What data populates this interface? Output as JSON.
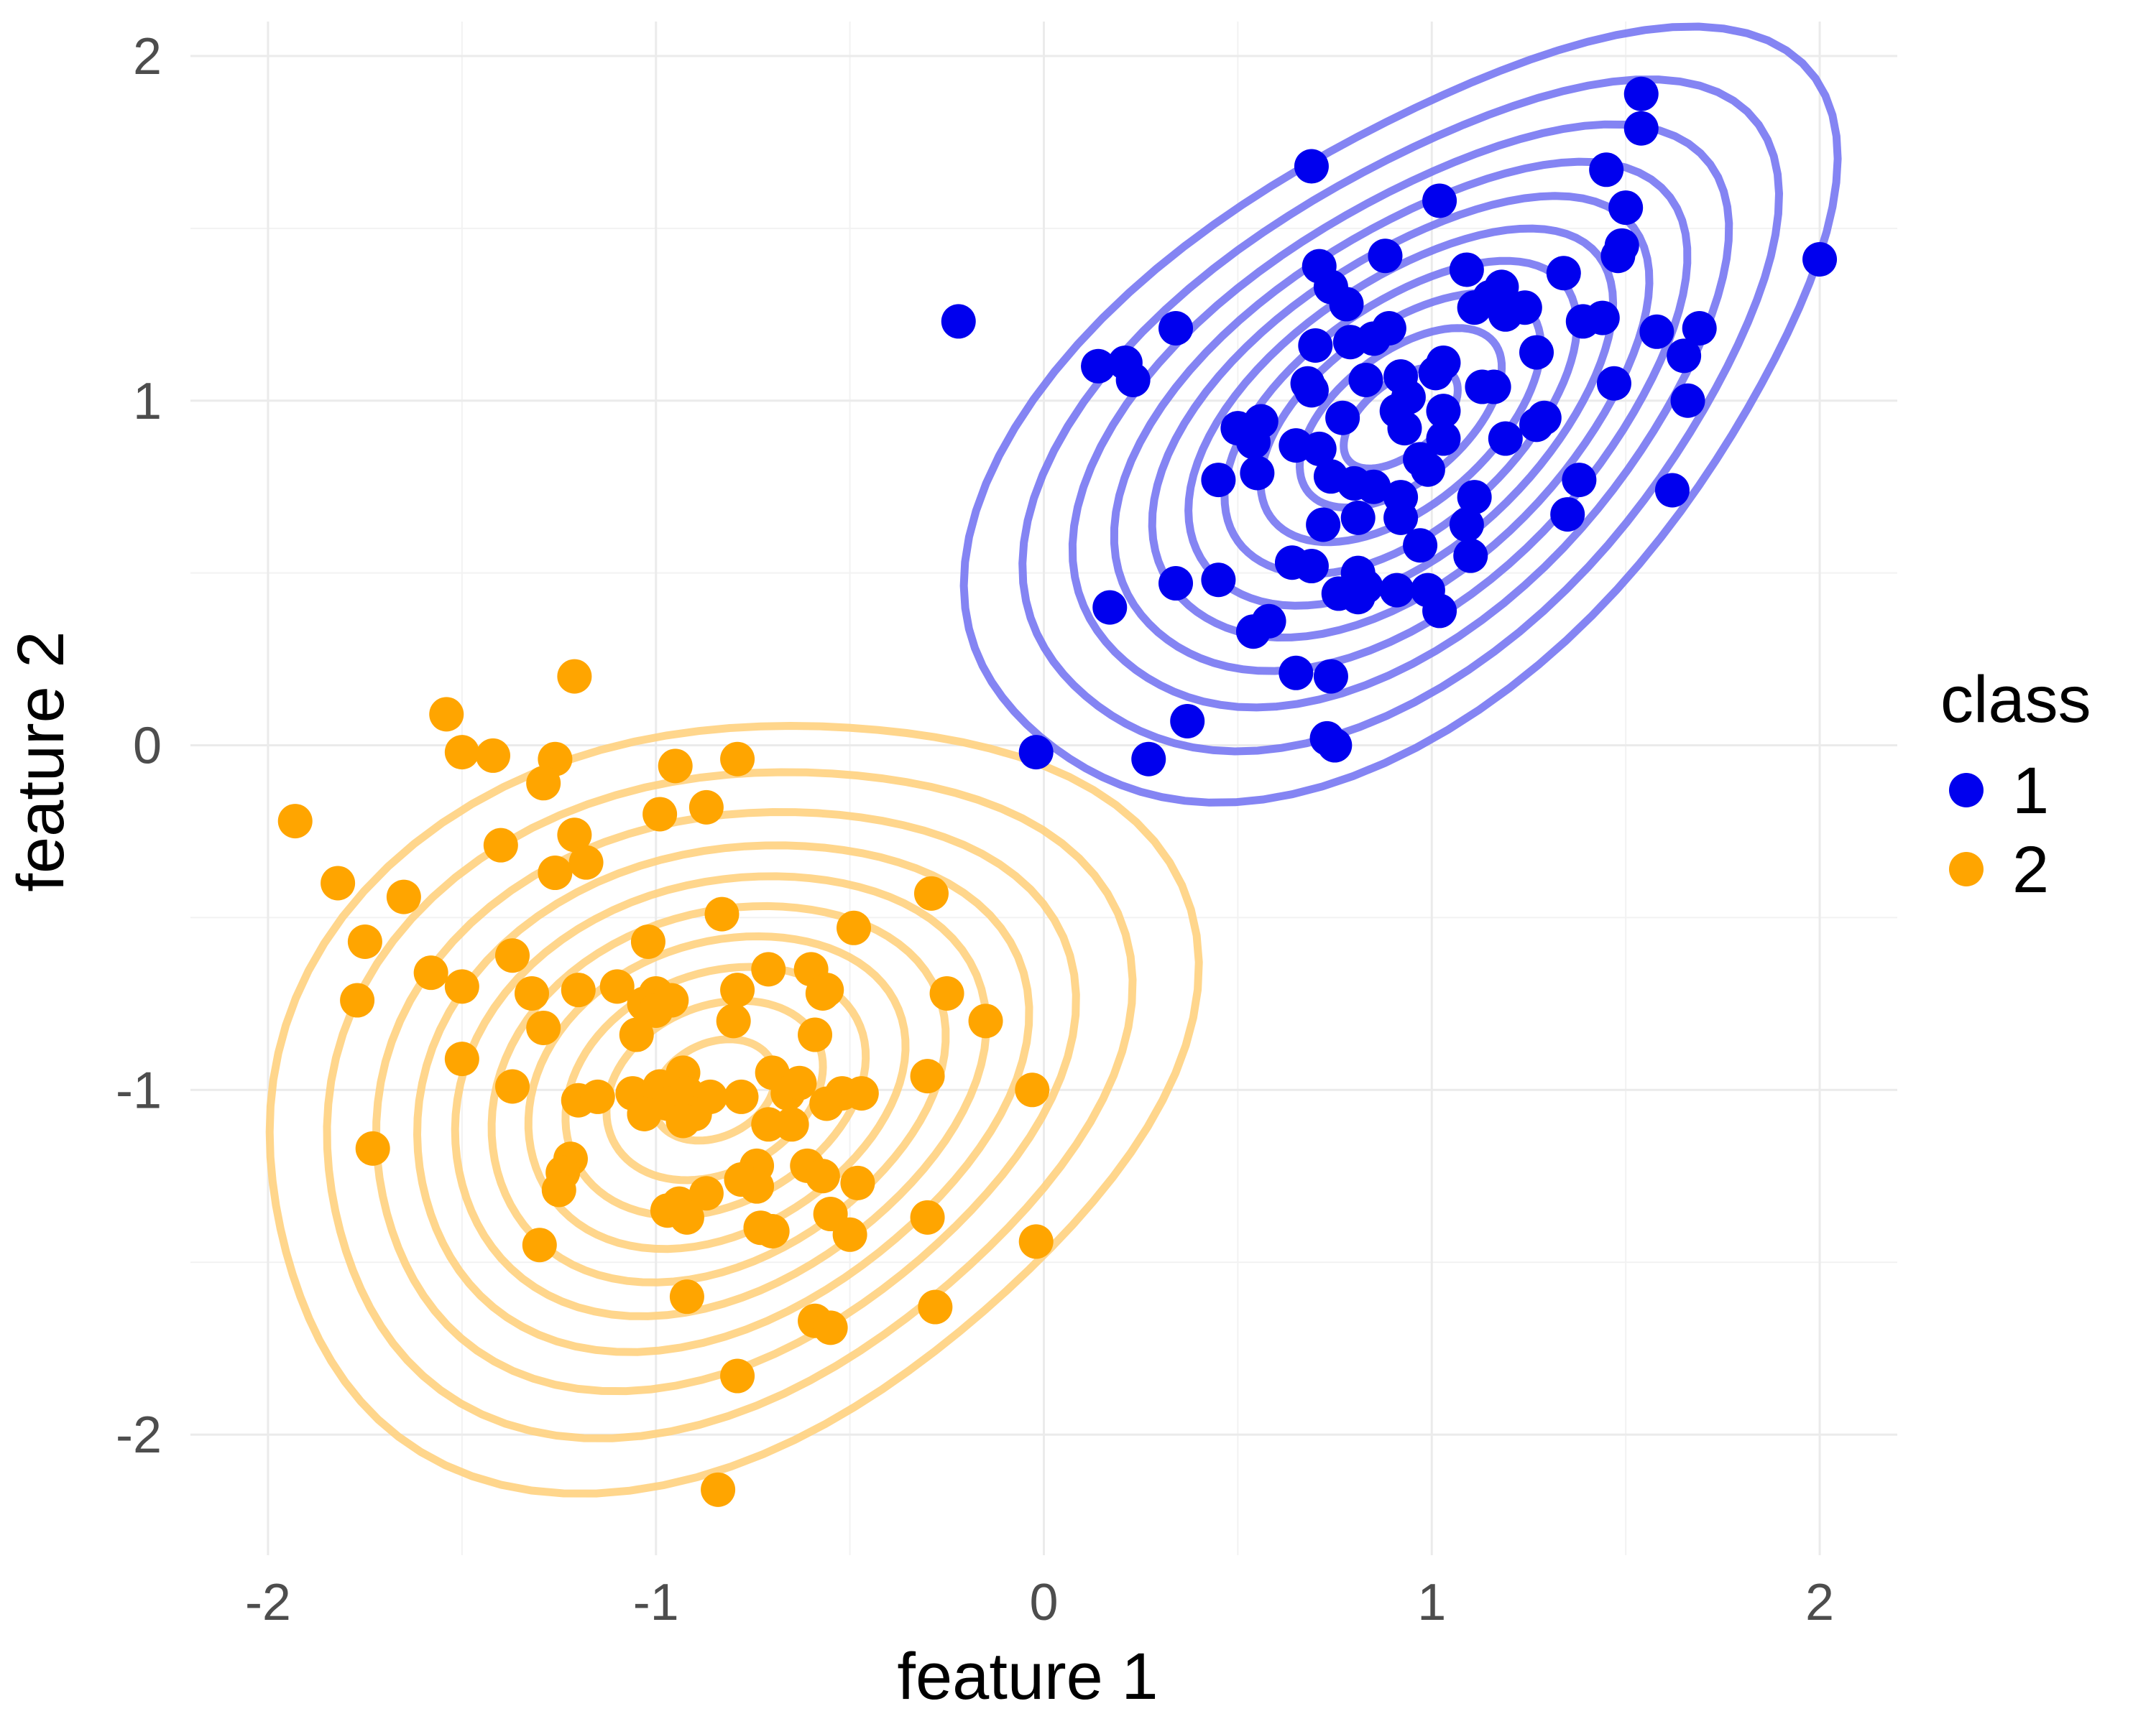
{
  "chart_data": {
    "type": "scatter",
    "title": "",
    "xlabel": "feature 1",
    "ylabel": "feature 2",
    "xlim": [
      -2.2,
      2.2
    ],
    "ylim": [
      -2.35,
      2.1
    ],
    "x_ticks": [
      -2,
      -1,
      0,
      1,
      2
    ],
    "y_ticks": [
      -2,
      -1,
      0,
      1,
      2
    ],
    "x_tick_labels": [
      "-2",
      "-1",
      "0",
      "1",
      "2"
    ],
    "y_tick_labels": [
      "-2",
      "-1",
      "0",
      "1",
      "2"
    ],
    "grid": true,
    "legend": {
      "title": "class",
      "position": "right",
      "entries": [
        {
          "label": "1",
          "color": "#0000ee"
        },
        {
          "label": "2",
          "color": "#ffa500"
        }
      ]
    },
    "overlay": "2d density contours per class",
    "series": [
      {
        "name": "1",
        "color": "#0000ee",
        "contour_color": "#7777f2",
        "center": [
          0.92,
          0.95
        ],
        "spread": [
          0.42,
          0.42
        ],
        "correlation": 0.55,
        "points": [
          [
            1.54,
            1.89
          ],
          [
            1.54,
            1.79
          ],
          [
            0.69,
            1.68
          ],
          [
            1.45,
            1.67
          ],
          [
            1.02,
            1.58
          ],
          [
            1.5,
            1.56
          ],
          [
            1.49,
            1.45
          ],
          [
            1.48,
            1.42
          ],
          [
            0.88,
            1.42
          ],
          [
            2.0,
            1.41
          ],
          [
            0.71,
            1.39
          ],
          [
            1.09,
            1.38
          ],
          [
            1.34,
            1.37
          ],
          [
            0.74,
            1.33
          ],
          [
            1.18,
            1.33
          ],
          [
            1.15,
            1.3
          ],
          [
            0.78,
            1.28
          ],
          [
            1.11,
            1.27
          ],
          [
            1.24,
            1.27
          ],
          [
            1.19,
            1.25
          ],
          [
            1.44,
            1.24
          ],
          [
            1.39,
            1.23
          ],
          [
            -0.22,
            1.23
          ],
          [
            0.34,
            1.21
          ],
          [
            0.89,
            1.21
          ],
          [
            1.69,
            1.21
          ],
          [
            1.58,
            1.2
          ],
          [
            0.85,
            1.18
          ],
          [
            0.79,
            1.17
          ],
          [
            0.7,
            1.16
          ],
          [
            1.27,
            1.14
          ],
          [
            1.65,
            1.13
          ],
          [
            1.03,
            1.11
          ],
          [
            0.14,
            1.1
          ],
          [
            0.21,
            1.11
          ],
          [
            1.01,
            1.08
          ],
          [
            0.23,
            1.06
          ],
          [
            0.83,
            1.06
          ],
          [
            0.92,
            1.07
          ],
          [
            0.68,
            1.05
          ],
          [
            1.47,
            1.05
          ],
          [
            1.13,
            1.04
          ],
          [
            1.16,
            1.04
          ],
          [
            0.69,
            1.03
          ],
          [
            0.94,
            1.01
          ],
          [
            1.66,
            1.0
          ],
          [
            1.03,
            0.97
          ],
          [
            0.91,
            0.97
          ],
          [
            0.77,
            0.95
          ],
          [
            0.56,
            0.94
          ],
          [
            1.29,
            0.95
          ],
          [
            1.27,
            0.93
          ],
          [
            0.5,
            0.92
          ],
          [
            0.93,
            0.92
          ],
          [
            1.03,
            0.89
          ],
          [
            1.19,
            0.89
          ],
          [
            0.54,
            0.88
          ],
          [
            0.65,
            0.87
          ],
          [
            0.71,
            0.86
          ],
          [
            0.97,
            0.83
          ],
          [
            0.99,
            0.8
          ],
          [
            0.55,
            0.79
          ],
          [
            0.74,
            0.78
          ],
          [
            1.38,
            0.77
          ],
          [
            0.45,
            0.77
          ],
          [
            0.8,
            0.76
          ],
          [
            0.85,
            0.75
          ],
          [
            1.62,
            0.74
          ],
          [
            0.92,
            0.72
          ],
          [
            1.11,
            0.72
          ],
          [
            1.35,
            0.67
          ],
          [
            0.81,
            0.66
          ],
          [
            0.92,
            0.66
          ],
          [
            0.72,
            0.64
          ],
          [
            1.09,
            0.64
          ],
          [
            0.97,
            0.58
          ],
          [
            1.1,
            0.55
          ],
          [
            0.64,
            0.53
          ],
          [
            0.69,
            0.52
          ],
          [
            0.81,
            0.5
          ],
          [
            0.83,
            0.46
          ],
          [
            0.34,
            0.47
          ],
          [
            0.45,
            0.48
          ],
          [
            0.91,
            0.45
          ],
          [
            0.76,
            0.44
          ],
          [
            0.81,
            0.43
          ],
          [
            0.99,
            0.45
          ],
          [
            1.02,
            0.39
          ],
          [
            0.17,
            0.4
          ],
          [
            0.58,
            0.36
          ],
          [
            0.54,
            0.33
          ],
          [
            0.65,
            0.21
          ],
          [
            0.74,
            0.2
          ],
          [
            0.37,
            0.07
          ],
          [
            0.73,
            0.02
          ],
          [
            0.75,
            0.0
          ],
          [
            -0.02,
            -0.02
          ],
          [
            0.27,
            -0.04
          ]
        ]
      },
      {
        "name": "2",
        "color": "#ffa500",
        "contour_color": "#ffd27f",
        "center": [
          -0.85,
          -1.0
        ],
        "spread": [
          0.45,
          0.42
        ],
        "correlation": 0.25,
        "points": [
          [
            -1.21,
            0.2
          ],
          [
            -1.54,
            0.09
          ],
          [
            -1.5,
            -0.02
          ],
          [
            -1.42,
            -0.03
          ],
          [
            -1.26,
            -0.04
          ],
          [
            -0.79,
            -0.04
          ],
          [
            -0.95,
            -0.06
          ],
          [
            -1.29,
            -0.11
          ],
          [
            -1.93,
            -0.22
          ],
          [
            -0.87,
            -0.18
          ],
          [
            -0.99,
            -0.2
          ],
          [
            -1.21,
            -0.26
          ],
          [
            -1.4,
            -0.29
          ],
          [
            -1.18,
            -0.34
          ],
          [
            -1.26,
            -0.37
          ],
          [
            -1.82,
            -0.4
          ],
          [
            -0.29,
            -0.43
          ],
          [
            -1.65,
            -0.44
          ],
          [
            -0.83,
            -0.49
          ],
          [
            -0.49,
            -0.53
          ],
          [
            -1.75,
            -0.57
          ],
          [
            -1.02,
            -0.57
          ],
          [
            -1.37,
            -0.61
          ],
          [
            -0.71,
            -0.65
          ],
          [
            -0.6,
            -0.65
          ],
          [
            -1.58,
            -0.66
          ],
          [
            -1.5,
            -0.7
          ],
          [
            -1.2,
            -0.71
          ],
          [
            -1.1,
            -0.7
          ],
          [
            -0.79,
            -0.71
          ],
          [
            -0.56,
            -0.71
          ],
          [
            -0.57,
            -0.72
          ],
          [
            -0.25,
            -0.72
          ],
          [
            -1.32,
            -0.72
          ],
          [
            -1.0,
            -0.72
          ],
          [
            -0.96,
            -0.74
          ],
          [
            -1.77,
            -0.74
          ],
          [
            -1.03,
            -0.75
          ],
          [
            -1.0,
            -0.77
          ],
          [
            -0.8,
            -0.8
          ],
          [
            -1.29,
            -0.82
          ],
          [
            -0.15,
            -0.8
          ],
          [
            -1.05,
            -0.84
          ],
          [
            -0.59,
            -0.84
          ],
          [
            -1.5,
            -0.91
          ],
          [
            -0.93,
            -0.95
          ],
          [
            -0.7,
            -0.95
          ],
          [
            -1.37,
            -0.99
          ],
          [
            -0.3,
            -0.96
          ],
          [
            -0.03,
            -1.0
          ],
          [
            -1.2,
            -1.03
          ],
          [
            -1.06,
            -1.01
          ],
          [
            -0.99,
            -0.99
          ],
          [
            -0.92,
            -1.01
          ],
          [
            -0.86,
            -1.02
          ],
          [
            -0.78,
            -1.02
          ],
          [
            -0.66,
            -1.01
          ],
          [
            -0.52,
            -1.01
          ],
          [
            -0.47,
            -1.01
          ],
          [
            -0.63,
            -0.98
          ],
          [
            -0.56,
            -1.04
          ],
          [
            -1.15,
            -1.02
          ],
          [
            -1.03,
            -1.07
          ],
          [
            -0.97,
            -1.04
          ],
          [
            -0.9,
            -1.07
          ],
          [
            -0.71,
            -1.1
          ],
          [
            -0.65,
            -1.1
          ],
          [
            -0.93,
            -1.09
          ],
          [
            -1.03,
            -1.07
          ],
          [
            -1.73,
            -1.17
          ],
          [
            -1.22,
            -1.2
          ],
          [
            -1.24,
            -1.24
          ],
          [
            -0.74,
            -1.22
          ],
          [
            -0.61,
            -1.22
          ],
          [
            -0.57,
            -1.25
          ],
          [
            -0.78,
            -1.26
          ],
          [
            -0.48,
            -1.27
          ],
          [
            -0.94,
            -1.33
          ],
          [
            -0.87,
            -1.3
          ],
          [
            -0.97,
            -1.35
          ],
          [
            -0.74,
            -1.28
          ],
          [
            -1.25,
            -1.29
          ],
          [
            -0.55,
            -1.36
          ],
          [
            -0.3,
            -1.37
          ],
          [
            -0.73,
            -1.4
          ],
          [
            -0.92,
            -1.37
          ],
          [
            -0.5,
            -1.42
          ],
          [
            -0.7,
            -1.41
          ],
          [
            -1.3,
            -1.45
          ],
          [
            -0.02,
            -1.44
          ],
          [
            -0.92,
            -1.6
          ],
          [
            -0.28,
            -1.63
          ],
          [
            -0.59,
            -1.67
          ],
          [
            -0.55,
            -1.69
          ],
          [
            -0.79,
            -1.83
          ],
          [
            -0.84,
            -2.16
          ]
        ]
      }
    ]
  }
}
